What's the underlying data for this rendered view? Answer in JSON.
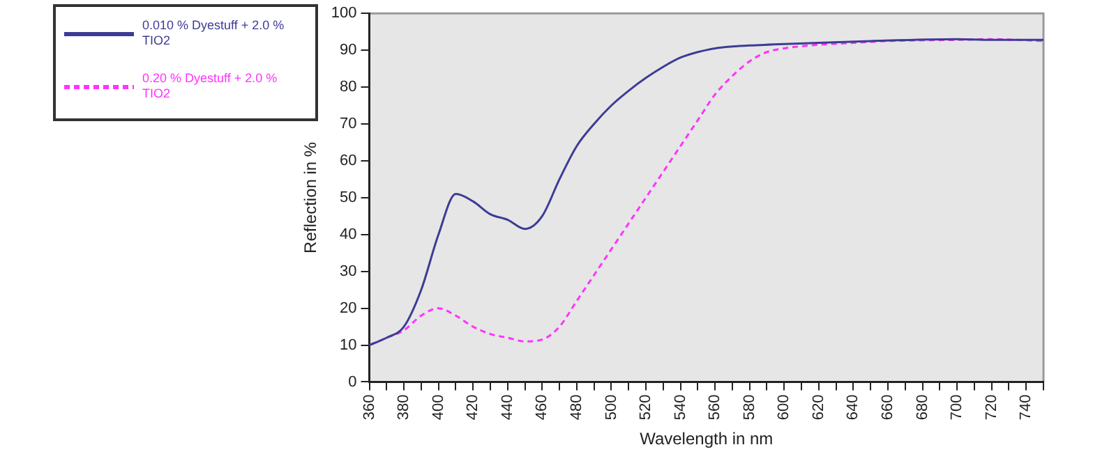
{
  "chart_data": {
    "type": "line",
    "xlabel": "Wavelength in nm",
    "ylabel": "Reflection in %",
    "xlim": [
      360,
      750
    ],
    "ylim": [
      0,
      100
    ],
    "xticks": [
      360,
      {
        "value": 370,
        "label": null
      },
      380,
      {
        "value": 390,
        "label": null
      },
      400,
      {
        "value": 410,
        "label": null
      },
      420,
      {
        "value": 430,
        "label": null
      },
      440,
      {
        "value": 450,
        "label": null
      },
      460,
      {
        "value": 470,
        "label": null
      },
      480,
      {
        "value": 490,
        "label": null
      },
      500,
      {
        "value": 510,
        "label": null
      },
      520,
      {
        "value": 530,
        "label": null
      },
      540,
      {
        "value": 550,
        "label": null
      },
      560,
      {
        "value": 570,
        "label": null
      },
      580,
      {
        "value": 590,
        "label": null
      },
      600,
      {
        "value": 610,
        "label": null
      },
      620,
      {
        "value": 630,
        "label": null
      },
      640,
      {
        "value": 650,
        "label": null
      },
      660,
      {
        "value": 670,
        "label": null
      },
      680,
      {
        "value": 690,
        "label": null
      },
      700,
      {
        "value": 710,
        "label": null
      },
      720,
      {
        "value": 730,
        "label": null
      },
      740,
      {
        "value": 750,
        "label": null
      }
    ],
    "yticks": [
      0,
      10,
      20,
      30,
      40,
      50,
      60,
      70,
      80,
      90,
      100
    ],
    "grid": false,
    "legend": "left",
    "marker": "none",
    "series": [
      {
        "name": "0.010 % Dyestuff + 2.0 % TIO2",
        "color": "#3c3c96",
        "line_style": "solid",
        "x": [
          360,
          370,
          380,
          390,
          400,
          410,
          420,
          430,
          440,
          450,
          460,
          470,
          480,
          490,
          500,
          510,
          520,
          530,
          540,
          550,
          560,
          570,
          580,
          600,
          620,
          650,
          700,
          720,
          750
        ],
        "values": [
          10,
          12,
          15,
          25,
          40,
          51,
          49,
          45.5,
          44,
          41.5,
          45,
          55,
          64,
          70,
          75,
          79,
          82.5,
          85.5,
          88,
          89.5,
          90.5,
          91,
          91.3,
          91.7,
          92,
          92.5,
          93,
          92.8,
          92.8
        ]
      },
      {
        "name": "0.20 % Dyestuff + 2.0 % TIO2",
        "color": "#ff33ff",
        "line_style": "dashed",
        "x": [
          360,
          370,
          380,
          390,
          400,
          410,
          420,
          430,
          440,
          450,
          460,
          470,
          480,
          490,
          500,
          510,
          520,
          530,
          540,
          550,
          560,
          570,
          580,
          590,
          600,
          620,
          640,
          660,
          700,
          720,
          750
        ],
        "values": [
          10,
          12,
          14,
          18,
          20,
          18,
          15,
          13,
          12,
          11,
          11.5,
          15,
          22,
          29,
          36,
          43,
          50,
          57,
          64,
          71,
          78,
          83,
          87,
          89.5,
          90.5,
          91.5,
          92,
          92.5,
          92.8,
          93,
          92.5
        ]
      }
    ]
  }
}
